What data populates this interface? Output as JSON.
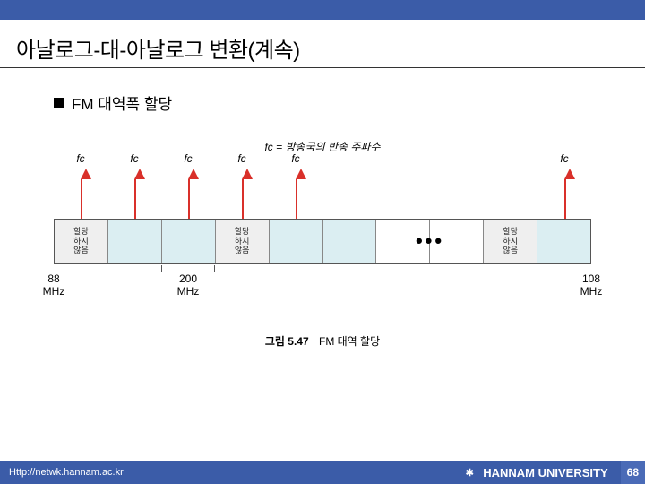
{
  "header": {
    "title": "아날로그-대-아날로그 변환(계속)"
  },
  "bullet": {
    "text": "FM 대역폭 할당"
  },
  "fc_note": "fc = 방송국의 반송 주파수",
  "diagram": {
    "fc_label": "fc",
    "unalloc_text": "할당\n하지\n않음",
    "dots": "•••",
    "left_freq": "88\nMHz",
    "right_freq": "108\nMHz",
    "spacing": "200\nMHz",
    "arrows_pct": [
      5,
      15,
      25,
      35,
      45,
      95
    ],
    "slots": [
      {
        "type": "unalloc"
      },
      {
        "type": "alloc"
      },
      {
        "type": "alloc"
      },
      {
        "type": "unalloc"
      },
      {
        "type": "alloc"
      },
      {
        "type": "alloc"
      },
      {
        "type": "blank"
      },
      {
        "type": "blank"
      },
      {
        "type": "unalloc"
      },
      {
        "type": "alloc"
      }
    ],
    "colors": {
      "arrow": "#d9302a",
      "alloc_bg": "#dbeef2",
      "unalloc_bg": "#efefef"
    }
  },
  "caption": {
    "label": "그림 5.47",
    "text": "FM 대역 할당"
  },
  "footer": {
    "url": "Http://netwk.hannam.ac.kr",
    "org": "HANNAM  UNIVERSITY",
    "page": "68"
  }
}
